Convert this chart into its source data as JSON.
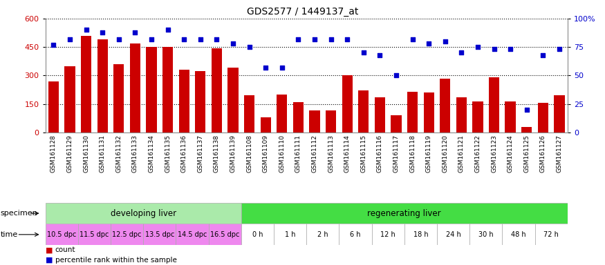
{
  "title": "GDS2577 / 1449137_at",
  "samples": [
    "GSM161128",
    "GSM161129",
    "GSM161130",
    "GSM161131",
    "GSM161132",
    "GSM161133",
    "GSM161134",
    "GSM161135",
    "GSM161136",
    "GSM161137",
    "GSM161138",
    "GSM161139",
    "GSM161108",
    "GSM161109",
    "GSM161110",
    "GSM161111",
    "GSM161112",
    "GSM161113",
    "GSM161114",
    "GSM161115",
    "GSM161116",
    "GSM161117",
    "GSM161118",
    "GSM161119",
    "GSM161120",
    "GSM161121",
    "GSM161122",
    "GSM161123",
    "GSM161124",
    "GSM161125",
    "GSM161126",
    "GSM161127"
  ],
  "bar_values": [
    270,
    350,
    510,
    490,
    360,
    470,
    450,
    450,
    330,
    325,
    445,
    340,
    195,
    80,
    200,
    160,
    115,
    115,
    300,
    220,
    185,
    90,
    215,
    210,
    285,
    185,
    165,
    290,
    165,
    30,
    155,
    195
  ],
  "dot_values": [
    77,
    82,
    90,
    88,
    82,
    88,
    82,
    90,
    82,
    82,
    82,
    78,
    75,
    57,
    57,
    82,
    82,
    82,
    82,
    70,
    68,
    50,
    82,
    78,
    80,
    70,
    75,
    73,
    73,
    20,
    68,
    73
  ],
  "bar_color": "#cc0000",
  "dot_color": "#0000cc",
  "ylim_left": [
    0,
    600
  ],
  "ylim_right": [
    0,
    100
  ],
  "yticks_left": [
    0,
    150,
    300,
    450,
    600
  ],
  "yticks_right": [
    0,
    25,
    50,
    75,
    100
  ],
  "ytick_labels_right": [
    "0",
    "25",
    "50",
    "75",
    "100%"
  ],
  "specimen_groups": [
    {
      "label": "developing liver",
      "start": 0,
      "end": 12,
      "color": "#aaeaaa"
    },
    {
      "label": "regenerating liver",
      "start": 12,
      "end": 32,
      "color": "#44dd44"
    }
  ],
  "time_labels": [
    {
      "label": "10.5 dpc",
      "start": 0,
      "end": 2
    },
    {
      "label": "11.5 dpc",
      "start": 2,
      "end": 4
    },
    {
      "label": "12.5 dpc",
      "start": 4,
      "end": 6
    },
    {
      "label": "13.5 dpc",
      "start": 6,
      "end": 8
    },
    {
      "label": "14.5 dpc",
      "start": 8,
      "end": 10
    },
    {
      "label": "16.5 dpc",
      "start": 10,
      "end": 12
    },
    {
      "label": "0 h",
      "start": 12,
      "end": 14
    },
    {
      "label": "1 h",
      "start": 14,
      "end": 16
    },
    {
      "label": "2 h",
      "start": 16,
      "end": 18
    },
    {
      "label": "6 h",
      "start": 18,
      "end": 20
    },
    {
      "label": "12 h",
      "start": 20,
      "end": 22
    },
    {
      "label": "18 h",
      "start": 22,
      "end": 24
    },
    {
      "label": "24 h",
      "start": 24,
      "end": 26
    },
    {
      "label": "30 h",
      "start": 26,
      "end": 28
    },
    {
      "label": "48 h",
      "start": 28,
      "end": 30
    },
    {
      "label": "72 h",
      "start": 30,
      "end": 32
    }
  ],
  "time_color_dpc": "#ee88ee",
  "time_color_h": "#ffffff",
  "plot_bg_color": "#ffffff",
  "legend_count_label": "count",
  "legend_dot_label": "percentile rank within the sample",
  "specimen_label": "specimen",
  "time_label": "time"
}
